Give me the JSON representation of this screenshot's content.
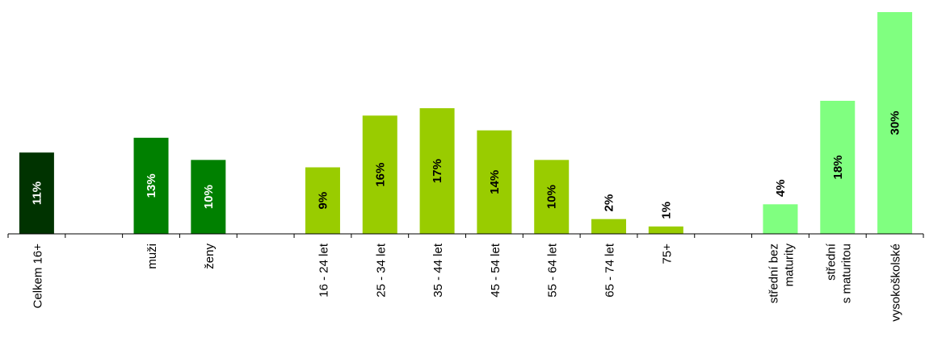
{
  "chart_data": {
    "type": "bar",
    "title": "",
    "xlabel": "",
    "ylabel": "",
    "ylim": [
      0,
      31
    ],
    "grid": false,
    "legend": "none",
    "categories": [
      "Celkem 16+",
      "",
      "muži",
      "ženy",
      "",
      "16 - 24 let",
      "25 - 34 let",
      "35 - 44 let",
      "45 - 54 let",
      "55 - 64 let",
      "65 - 74 let",
      "75+",
      "",
      "střední bez maturity",
      "střední s maturitou",
      "vysokoškolské"
    ],
    "category_lines": [
      [
        "Celkem 16+"
      ],
      [],
      [
        "muži"
      ],
      [
        "ženy"
      ],
      [],
      [
        "16 - 24 let"
      ],
      [
        "25 - 34 let"
      ],
      [
        "35 - 44 let"
      ],
      [
        "45 - 54 let"
      ],
      [
        "55 - 64 let"
      ],
      [
        "65 - 74 let"
      ],
      [
        "75+"
      ],
      [],
      [
        "střední bez",
        "maturity"
      ],
      [
        "střední",
        "s maturitou"
      ],
      [
        "vysokoškolské"
      ]
    ],
    "values": [
      11,
      null,
      13,
      10,
      null,
      9,
      16,
      17,
      14,
      10,
      2,
      1,
      null,
      4,
      18,
      30
    ],
    "data_labels": [
      "11%",
      "",
      "13%",
      "10%",
      "",
      "9%",
      "16%",
      "17%",
      "14%",
      "10%",
      "2%",
      "1%",
      "",
      "4%",
      "18%",
      "30%"
    ],
    "colors": [
      "#003300",
      null,
      "#008000",
      "#008000",
      null,
      "#99cc00",
      "#99cc00",
      "#99cc00",
      "#99cc00",
      "#99cc00",
      "#99cc00",
      "#99cc00",
      null,
      "#80ff80",
      "#80ff80",
      "#80ff80"
    ],
    "label_colors": [
      "#ffffff",
      null,
      "#ffffff",
      "#ffffff",
      null,
      "#000000",
      "#000000",
      "#000000",
      "#000000",
      "#000000",
      "#000000",
      "#000000",
      null,
      "#000000",
      "#000000",
      "#000000"
    ]
  }
}
